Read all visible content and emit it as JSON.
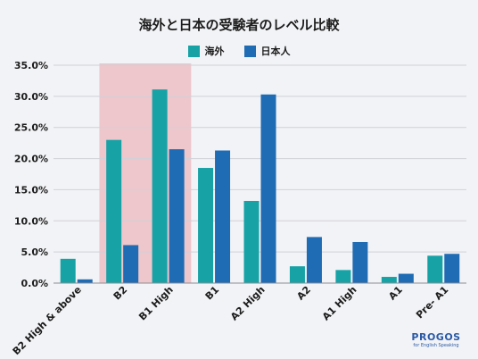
{
  "chart_data": {
    "type": "bar",
    "title": "海外と日本の受験者のレベル比較",
    "categories": [
      "B2 High & above",
      "B2",
      "B1 High",
      "B1",
      "A2 High",
      "A2",
      "A1 High",
      "A1",
      "Pre- A1"
    ],
    "series": [
      {
        "name": "海外",
        "color": "#17a2a6",
        "values": [
          3.9,
          23.0,
          31.1,
          18.5,
          13.2,
          2.7,
          2.1,
          1.0,
          4.4
        ]
      },
      {
        "name": "日本人",
        "color": "#1f6cb4",
        "values": [
          0.6,
          6.1,
          21.5,
          21.3,
          30.3,
          7.4,
          6.6,
          1.5,
          4.7
        ]
      }
    ],
    "yticks": [
      "0.0%",
      "5.0%",
      "10.0%",
      "15.0%",
      "20.0%",
      "25.0%",
      "30.0%",
      "35.0%"
    ],
    "ylim": [
      0,
      35
    ],
    "highlight": {
      "categories": [
        "B2",
        "B1 High"
      ],
      "color": "#edc7cc"
    },
    "legend_position": "top-center",
    "grid": true
  },
  "logo": {
    "main": "PROGOS",
    "sub": "for English Speaking"
  }
}
